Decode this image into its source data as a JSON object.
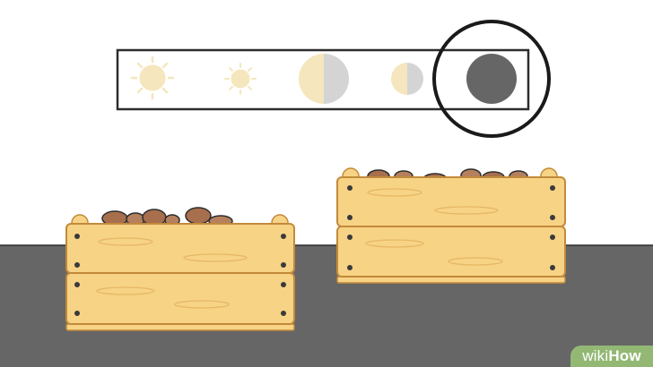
{
  "watermark": {
    "part1": "wiki",
    "part2": "How"
  },
  "light_scale": {
    "levels": [
      "bright-sun",
      "sun",
      "half-light",
      "partial-light",
      "dark"
    ],
    "highlighted": "dark"
  },
  "crates": [
    "potato-crate-short",
    "potato-crate-tall"
  ],
  "colors": {
    "wall": "#ffffff",
    "floor": "#666666",
    "wood": "#f7d386",
    "wood_outline": "#c28a3a",
    "potato": "#b07a5a",
    "sun": "#f5e6bd",
    "shade": "#d4d4d4",
    "dark_circle": "#666666"
  }
}
